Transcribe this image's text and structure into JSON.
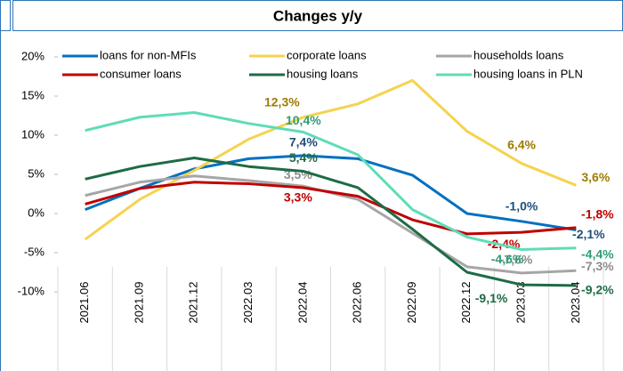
{
  "chart_data": {
    "type": "line",
    "title": "Changes y/y",
    "categories": [
      "2021.06",
      "2021.09",
      "2021.12",
      "2022.03",
      "2022.04",
      "2022.06",
      "2022.09",
      "2022.12",
      "2023.03",
      "2023.04"
    ],
    "series": [
      {
        "name": "loans for non-MFIs",
        "color": "#0070c0",
        "label_color": "#1f4e79",
        "values": [
          0.5,
          3.2,
          5.7,
          7.0,
          7.4,
          7.0,
          4.9,
          0.0,
          -1.0,
          -2.1
        ],
        "value_labels": [
          null,
          null,
          null,
          null,
          "7,4%",
          null,
          null,
          null,
          "-1,0%",
          "-2,1%"
        ]
      },
      {
        "name": "corporate loans",
        "color": "#f5d34f",
        "label_color": "#9c7c00",
        "values": [
          -3.3,
          1.8,
          5.5,
          9.5,
          12.3,
          14.0,
          17.0,
          10.5,
          6.4,
          3.6
        ],
        "value_labels": [
          null,
          null,
          null,
          null,
          "12,3%",
          null,
          null,
          null,
          "6,4%",
          "3,6%"
        ]
      },
      {
        "name": "households loans",
        "color": "#a6a6a6",
        "label_color": "#8c8c8c",
        "values": [
          2.3,
          4.0,
          4.8,
          4.2,
          3.5,
          1.8,
          -2.5,
          -6.8,
          -7.6,
          -7.3
        ],
        "value_labels": [
          null,
          null,
          null,
          null,
          "3,5%",
          null,
          null,
          null,
          "-7,6%",
          "-7,3%"
        ]
      },
      {
        "name": "consumer loans",
        "color": "#c00000",
        "label_color": "#c00000",
        "values": [
          1.2,
          3.2,
          4.0,
          3.8,
          3.3,
          2.2,
          -0.8,
          -2.6,
          -2.4,
          -1.8
        ],
        "value_labels": [
          null,
          null,
          null,
          null,
          "3,3%",
          null,
          null,
          null,
          "-2,4%",
          "-1,8%"
        ]
      },
      {
        "name": "housing loans",
        "color": "#1e6b46",
        "label_color": "#1e6b46",
        "values": [
          4.4,
          6.0,
          7.1,
          6.0,
          5.4,
          3.3,
          -2.0,
          -7.5,
          -9.1,
          -9.2
        ],
        "value_labels": [
          null,
          null,
          null,
          null,
          "5,4%",
          null,
          null,
          null,
          "-9,1%",
          "-9,2%"
        ]
      },
      {
        "name": "housing loans in PLN",
        "color": "#5fdcb8",
        "label_color": "#2e9c78",
        "values": [
          10.6,
          12.3,
          12.9,
          11.5,
          10.4,
          7.5,
          0.5,
          -3.0,
          -4.6,
          -4.4
        ],
        "value_labels": [
          null,
          null,
          null,
          null,
          "10,4%",
          null,
          null,
          null,
          "-4,6%",
          "-4,4%"
        ]
      }
    ],
    "ylim": [
      -10,
      20
    ],
    "yticks": [
      {
        "value": -10,
        "label": "-10%"
      },
      {
        "value": -5,
        "label": "-5%"
      },
      {
        "value": 0,
        "label": "0%"
      },
      {
        "value": 5,
        "label": "5%"
      },
      {
        "value": 10,
        "label": "10%"
      },
      {
        "value": 15,
        "label": "15%"
      },
      {
        "value": 20,
        "label": "20%"
      }
    ],
    "grid": false
  }
}
